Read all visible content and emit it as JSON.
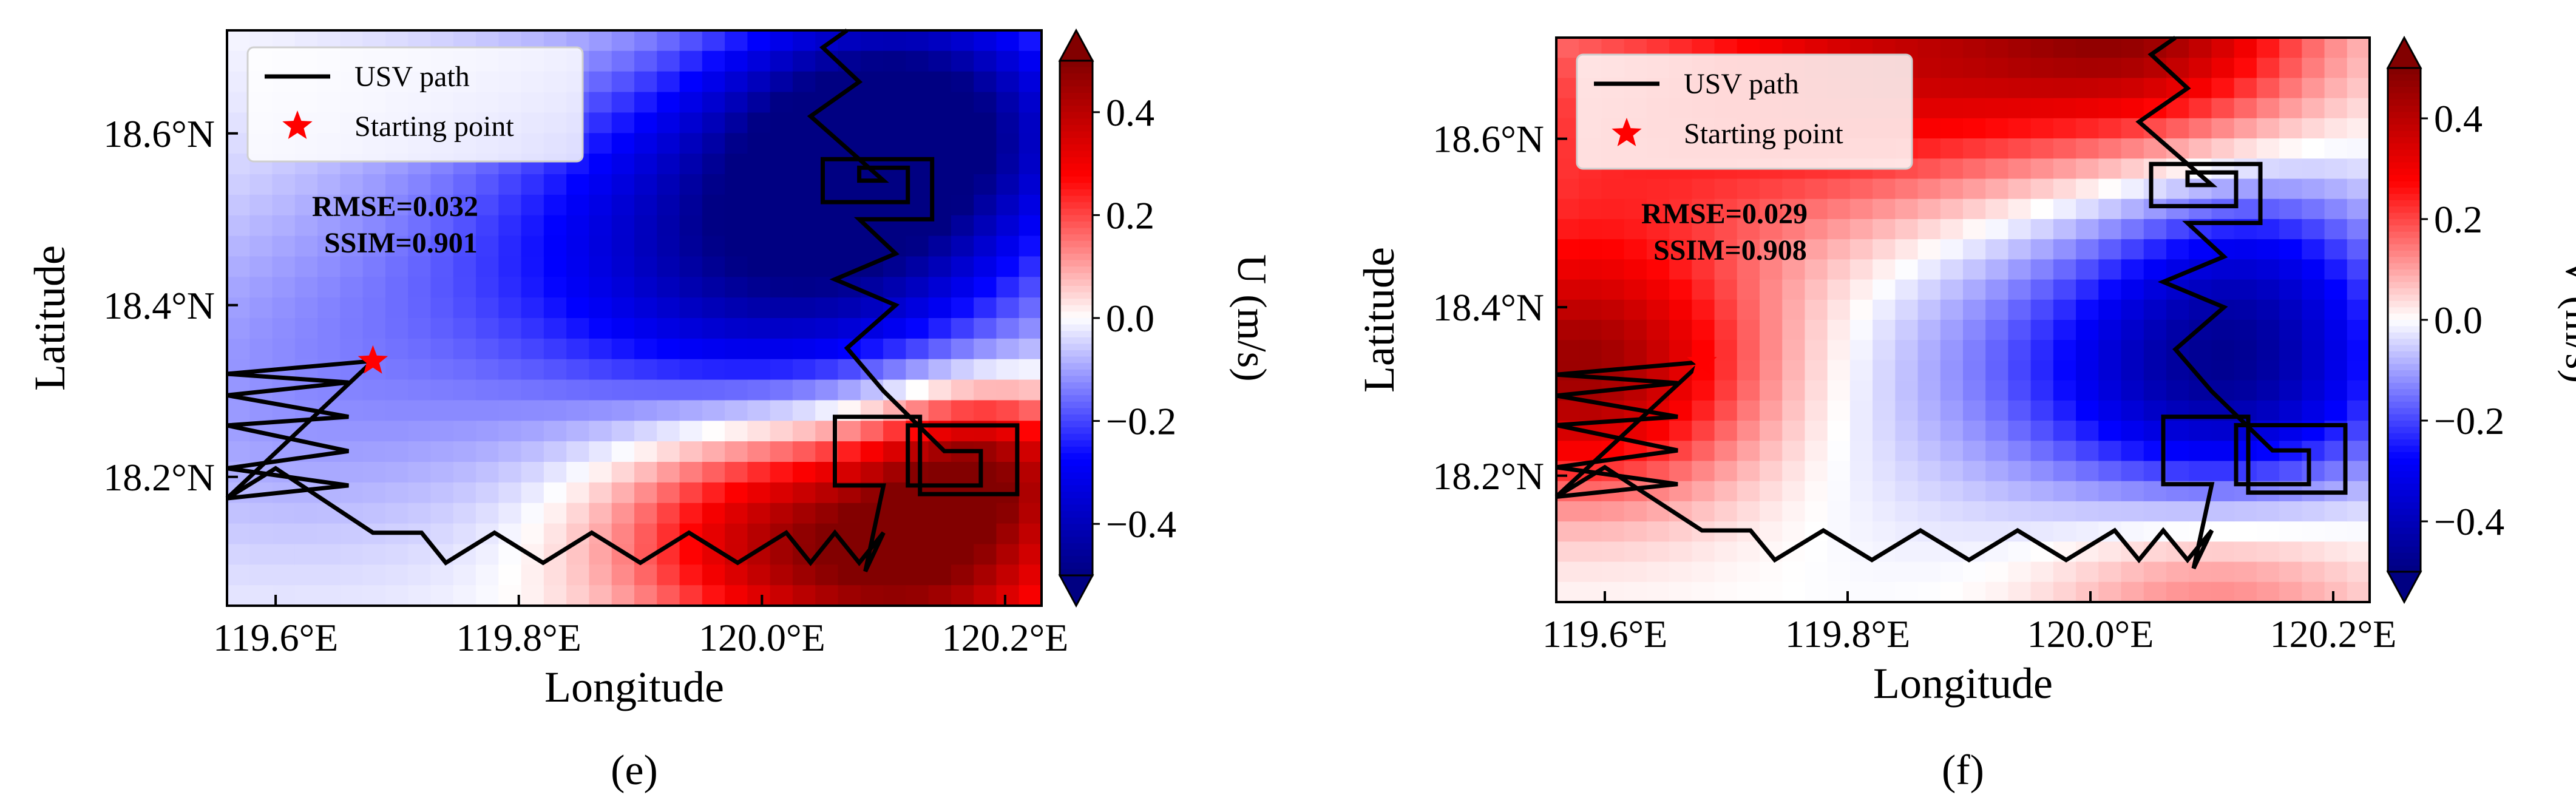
{
  "chart_data": [
    {
      "type": "heatmap",
      "panel_label": "(e)",
      "xlabel": "Longitude",
      "ylabel": "Latitude",
      "xlim": [
        119.56,
        120.23
      ],
      "ylim": [
        18.05,
        18.72
      ],
      "xticks": [
        119.6,
        119.8,
        120.0,
        120.2
      ],
      "xtick_labels": [
        "119.6°E",
        "119.8°E",
        "120.0°E",
        "120.2°E"
      ],
      "yticks": [
        18.2,
        18.4,
        18.6
      ],
      "ytick_labels": [
        "18.2°N",
        "18.4°N",
        "18.6°N"
      ],
      "colorbar": {
        "label": "U (m/s)",
        "range": [
          -0.5,
          0.5
        ],
        "ticks": [
          0.4,
          0.2,
          0.0,
          -0.2,
          -0.4
        ],
        "tick_labels": [
          "0.4",
          "0.2",
          "0.0",
          "−0.2",
          "−0.4"
        ]
      },
      "metrics": [
        "RMSE=0.032",
        "SSIM=0.901"
      ],
      "legend": {
        "position": "top-left",
        "entries": [
          "USV path",
          "Starting point"
        ]
      },
      "start_point": [
        119.68,
        18.335
      ],
      "field_centers": [
        [
          120.12,
          18.62,
          -0.48,
          0.11
        ],
        [
          120.04,
          18.45,
          -0.32,
          0.13
        ],
        [
          119.88,
          18.48,
          -0.18,
          0.16
        ],
        [
          120.13,
          18.11,
          0.47,
          0.1
        ],
        [
          119.98,
          18.14,
          0.25,
          0.09
        ],
        [
          120.18,
          18.22,
          0.3,
          0.06
        ],
        [
          119.6,
          18.3,
          -0.1,
          0.15
        ]
      ],
      "usv_path": [
        [
          119.56,
          18.175
        ],
        [
          119.66,
          18.19
        ],
        [
          119.56,
          18.21
        ],
        [
          119.66,
          18.23
        ],
        [
          119.56,
          18.26
        ],
        [
          119.66,
          18.27
        ],
        [
          119.56,
          18.295
        ],
        [
          119.66,
          18.31
        ],
        [
          119.56,
          18.32
        ],
        [
          119.68,
          18.335
        ],
        [
          119.56,
          18.175
        ],
        [
          119.6,
          18.21
        ],
        [
          119.68,
          18.135
        ],
        [
          119.72,
          18.135
        ],
        [
          119.74,
          18.1
        ],
        [
          119.78,
          18.135
        ],
        [
          119.82,
          18.1
        ],
        [
          119.86,
          18.135
        ],
        [
          119.9,
          18.1
        ],
        [
          119.94,
          18.135
        ],
        [
          119.98,
          18.1
        ],
        [
          120.02,
          18.135
        ],
        [
          120.04,
          18.1
        ],
        [
          120.06,
          18.135
        ],
        [
          120.08,
          18.1
        ],
        [
          120.1,
          18.135
        ],
        [
          120.085,
          18.09
        ],
        [
          120.1,
          18.19
        ],
        [
          120.06,
          18.19
        ],
        [
          120.06,
          18.27
        ],
        [
          120.13,
          18.27
        ],
        [
          120.13,
          18.18
        ],
        [
          120.21,
          18.18
        ],
        [
          120.21,
          18.26
        ],
        [
          120.12,
          18.26
        ],
        [
          120.12,
          18.19
        ],
        [
          120.18,
          18.19
        ],
        [
          120.18,
          18.23
        ],
        [
          120.15,
          18.23
        ],
        [
          120.1,
          18.3
        ],
        [
          120.07,
          18.35
        ],
        [
          120.11,
          18.4
        ],
        [
          120.06,
          18.43
        ],
        [
          120.11,
          18.46
        ],
        [
          120.08,
          18.5
        ],
        [
          120.14,
          18.5
        ],
        [
          120.14,
          18.57
        ],
        [
          120.05,
          18.57
        ],
        [
          120.05,
          18.52
        ],
        [
          120.12,
          18.52
        ],
        [
          120.12,
          18.56
        ],
        [
          120.08,
          18.56
        ],
        [
          120.08,
          18.545
        ],
        [
          120.1,
          18.545
        ],
        [
          120.04,
          18.62
        ],
        [
          120.08,
          18.66
        ],
        [
          120.05,
          18.7
        ],
        [
          120.07,
          18.72
        ]
      ]
    },
    {
      "type": "heatmap",
      "panel_label": "(f)",
      "xlabel": "Longitude",
      "ylabel": "Latitude",
      "xlim": [
        119.56,
        120.23
      ],
      "ylim": [
        18.05,
        18.72
      ],
      "xticks": [
        119.6,
        119.8,
        120.0,
        120.2
      ],
      "xtick_labels": [
        "119.6°E",
        "119.8°E",
        "120.0°E",
        "120.2°E"
      ],
      "yticks": [
        18.2,
        18.4,
        18.6
      ],
      "ytick_labels": [
        "18.2°N",
        "18.4°N",
        "18.6°N"
      ],
      "colorbar": {
        "label": "V (m/s)",
        "range": [
          -0.5,
          0.5
        ],
        "ticks": [
          0.4,
          0.2,
          0.0,
          -0.2,
          -0.4
        ],
        "tick_labels": [
          "0.4",
          "0.2",
          "0.0",
          "−0.2",
          "−0.4"
        ]
      },
      "metrics": [
        "RMSE=0.029",
        "SSIM=0.908"
      ],
      "legend": {
        "position": "top-left",
        "entries": [
          "USV path",
          "Starting point"
        ]
      },
      "start_point": [
        119.68,
        18.335
      ],
      "field_centers": [
        [
          120.12,
          18.31,
          -0.34,
          0.1
        ],
        [
          120.0,
          18.35,
          -0.15,
          0.14
        ],
        [
          120.14,
          18.46,
          -0.15,
          0.08
        ],
        [
          119.58,
          18.32,
          0.42,
          0.1
        ],
        [
          119.85,
          18.7,
          0.3,
          0.12
        ],
        [
          120.05,
          18.74,
          0.4,
          0.1
        ],
        [
          119.6,
          18.6,
          0.2,
          0.15
        ],
        [
          120.1,
          18.05,
          0.15,
          0.1
        ]
      ],
      "usv_path": [
        [
          119.56,
          18.175
        ],
        [
          119.66,
          18.19
        ],
        [
          119.56,
          18.21
        ],
        [
          119.66,
          18.23
        ],
        [
          119.56,
          18.26
        ],
        [
          119.66,
          18.27
        ],
        [
          119.56,
          18.295
        ],
        [
          119.66,
          18.31
        ],
        [
          119.56,
          18.32
        ],
        [
          119.68,
          18.335
        ],
        [
          119.56,
          18.175
        ],
        [
          119.6,
          18.21
        ],
        [
          119.68,
          18.135
        ],
        [
          119.72,
          18.135
        ],
        [
          119.74,
          18.1
        ],
        [
          119.78,
          18.135
        ],
        [
          119.82,
          18.1
        ],
        [
          119.86,
          18.135
        ],
        [
          119.9,
          18.1
        ],
        [
          119.94,
          18.135
        ],
        [
          119.98,
          18.1
        ],
        [
          120.02,
          18.135
        ],
        [
          120.04,
          18.1
        ],
        [
          120.06,
          18.135
        ],
        [
          120.08,
          18.1
        ],
        [
          120.1,
          18.135
        ],
        [
          120.085,
          18.09
        ],
        [
          120.1,
          18.19
        ],
        [
          120.06,
          18.19
        ],
        [
          120.06,
          18.27
        ],
        [
          120.13,
          18.27
        ],
        [
          120.13,
          18.18
        ],
        [
          120.21,
          18.18
        ],
        [
          120.21,
          18.26
        ],
        [
          120.12,
          18.26
        ],
        [
          120.12,
          18.19
        ],
        [
          120.18,
          18.19
        ],
        [
          120.18,
          18.23
        ],
        [
          120.15,
          18.23
        ],
        [
          120.1,
          18.3
        ],
        [
          120.07,
          18.35
        ],
        [
          120.11,
          18.4
        ],
        [
          120.06,
          18.43
        ],
        [
          120.11,
          18.46
        ],
        [
          120.08,
          18.5
        ],
        [
          120.14,
          18.5
        ],
        [
          120.14,
          18.57
        ],
        [
          120.05,
          18.57
        ],
        [
          120.05,
          18.52
        ],
        [
          120.12,
          18.52
        ],
        [
          120.12,
          18.56
        ],
        [
          120.08,
          18.56
        ],
        [
          120.08,
          18.545
        ],
        [
          120.1,
          18.545
        ],
        [
          120.04,
          18.62
        ],
        [
          120.08,
          18.66
        ],
        [
          120.05,
          18.7
        ],
        [
          120.07,
          18.72
        ]
      ]
    }
  ]
}
